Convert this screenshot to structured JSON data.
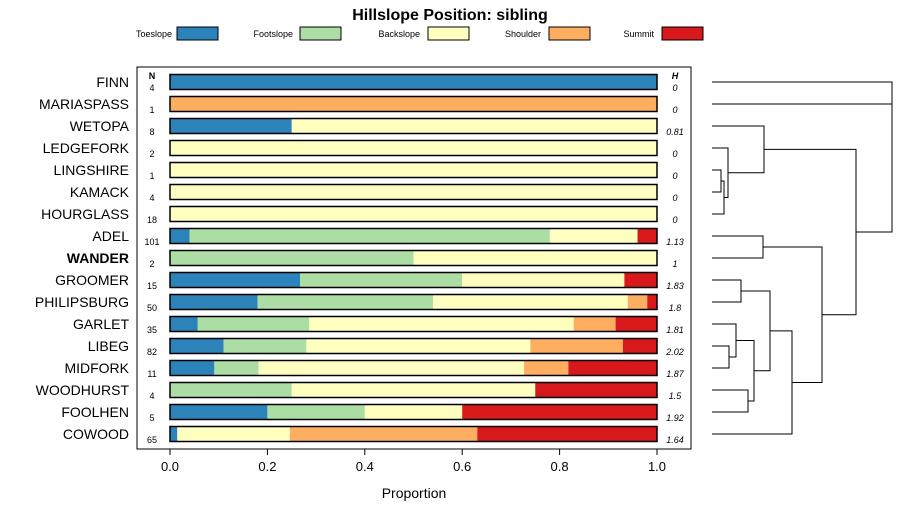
{
  "chart_data": {
    "type": "bar",
    "orientation": "horizontal",
    "stacked": true,
    "title": "Hillslope Position: sibling",
    "xlabel": "Proportion",
    "ylabel": "",
    "xlim": [
      0,
      1
    ],
    "x_ticks": [
      "0.0",
      "0.2",
      "0.4",
      "0.6",
      "0.8",
      "1.0"
    ],
    "legend": {
      "placement": "top",
      "entries": [
        {
          "name": "Toeslope",
          "color": "#2b83ba"
        },
        {
          "name": "Footslope",
          "color": "#abdda4"
        },
        {
          "name": "Backslope",
          "color": "#ffffbf"
        },
        {
          "name": "Shoulder",
          "color": "#fdae61"
        },
        {
          "name": "Summit",
          "color": "#d7191c"
        }
      ]
    },
    "n_header": "N",
    "h_header": "H",
    "highlight": "WANDER",
    "rows": [
      {
        "name": "FINN",
        "n": "4",
        "h": "0",
        "values": [
          1.0,
          0,
          0,
          0,
          0
        ]
      },
      {
        "name": "MARIASPASS",
        "n": "1",
        "h": "0",
        "values": [
          0,
          0,
          0,
          1.0,
          0
        ]
      },
      {
        "name": "WETOPA",
        "n": "8",
        "h": "0.81",
        "values": [
          0.25,
          0,
          0.75,
          0,
          0
        ]
      },
      {
        "name": "LEDGEFORK",
        "n": "2",
        "h": "0",
        "values": [
          0,
          0,
          1.0,
          0,
          0
        ]
      },
      {
        "name": "LINGSHIRE",
        "n": "1",
        "h": "0",
        "values": [
          0,
          0,
          1.0,
          0,
          0
        ]
      },
      {
        "name": "KAMACK",
        "n": "4",
        "h": "0",
        "values": [
          0,
          0,
          1.0,
          0,
          0
        ]
      },
      {
        "name": "HOURGLASS",
        "n": "18",
        "h": "0",
        "values": [
          0,
          0,
          1.0,
          0,
          0
        ]
      },
      {
        "name": "ADEL",
        "n": "101",
        "h": "1.13",
        "values": [
          0.04,
          0.74,
          0.18,
          0,
          0.04
        ]
      },
      {
        "name": "WANDER",
        "n": "2",
        "h": "1",
        "values": [
          0,
          0.5,
          0.5,
          0,
          0
        ]
      },
      {
        "name": "GROOMER",
        "n": "15",
        "h": "1.83",
        "values": [
          0.267,
          0.333,
          0.333,
          0,
          0.067
        ]
      },
      {
        "name": "PHILIPSBURG",
        "n": "50",
        "h": "1.8",
        "values": [
          0.18,
          0.36,
          0.4,
          0.04,
          0.02
        ]
      },
      {
        "name": "GARLET",
        "n": "35",
        "h": "1.81",
        "values": [
          0.057,
          0.229,
          0.543,
          0.086,
          0.085
        ]
      },
      {
        "name": "LIBEG",
        "n": "82",
        "h": "2.02",
        "values": [
          0.11,
          0.17,
          0.46,
          0.19,
          0.07
        ]
      },
      {
        "name": "MIDFORK",
        "n": "11",
        "h": "1.87",
        "values": [
          0.091,
          0.091,
          0.545,
          0.091,
          0.182
        ]
      },
      {
        "name": "WOODHURST",
        "n": "4",
        "h": "1.5",
        "values": [
          0,
          0.25,
          0.5,
          0,
          0.25
        ]
      },
      {
        "name": "FOOLHEN",
        "n": "5",
        "h": "1.92",
        "values": [
          0.2,
          0.2,
          0.2,
          0,
          0.4
        ]
      },
      {
        "name": "COWOOD",
        "n": "65",
        "h": "1.64",
        "values": [
          0.015,
          0.0,
          0.231,
          0.385,
          0.369
        ]
      }
    ]
  }
}
